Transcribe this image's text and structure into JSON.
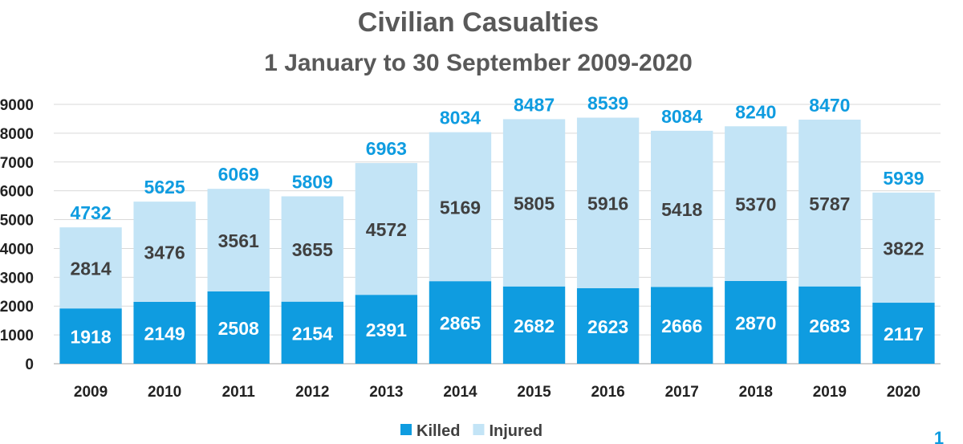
{
  "chart_data": {
    "type": "bar",
    "stacked": true,
    "title": "Civilian Casualties",
    "subtitle": "1 January to 30 September 2009-2020",
    "categories": [
      "2009",
      "2010",
      "2011",
      "2012",
      "2013",
      "2014",
      "2015",
      "2016",
      "2017",
      "2018",
      "2019",
      "2020"
    ],
    "series": [
      {
        "name": "Killed",
        "values": [
          1918,
          2149,
          2508,
          2154,
          2391,
          2865,
          2682,
          2623,
          2666,
          2870,
          2683,
          2117
        ],
        "color": "#0f9ce0"
      },
      {
        "name": "Injured",
        "values": [
          2814,
          3476,
          3561,
          3655,
          4572,
          5169,
          5805,
          5916,
          5418,
          5370,
          5787,
          3822
        ],
        "color": "#c3e4f6"
      }
    ],
    "totals": [
      4732,
      5625,
      6069,
      5809,
      6963,
      8034,
      8487,
      8539,
      8084,
      8240,
      8470,
      5939
    ],
    "total_color": "#0f9ce0",
    "ylim": [
      0,
      9000
    ],
    "yticks": [
      0,
      1000,
      2000,
      3000,
      4000,
      5000,
      6000,
      7000,
      8000,
      9000
    ],
    "grid": true,
    "legend": "bottom"
  },
  "page_number": "1"
}
